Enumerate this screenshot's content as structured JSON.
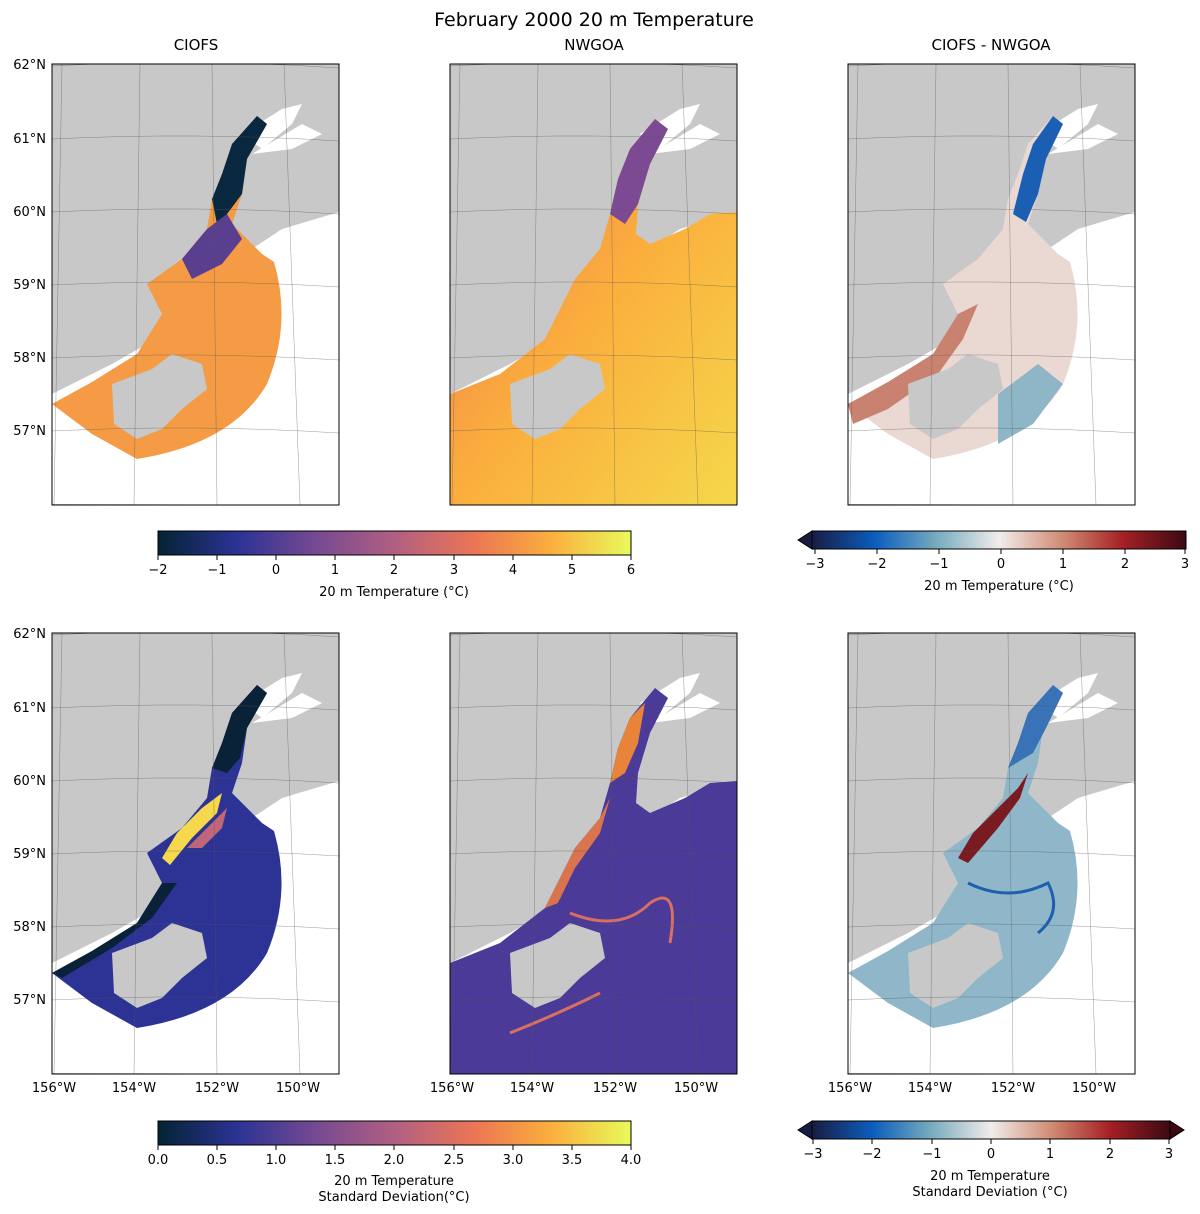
{
  "figure": {
    "title": "February 2000 20 m Temperature"
  },
  "panels": {
    "ciofs_title": "CIOFS",
    "nwgoa_title": "NWGOA",
    "diff_title": "CIOFS - NWGOA"
  },
  "lat_labels": [
    "62°N",
    "61°N",
    "60°N",
    "59°N",
    "58°N",
    "57°N"
  ],
  "lon_labels": [
    "156°W",
    "154°W",
    "152°W",
    "150°W"
  ],
  "colorbars": {
    "mean_temp": {
      "label": "20 m Temperature (°C)",
      "ticks": [
        "−2",
        "−1",
        "0",
        "1",
        "2",
        "3",
        "4",
        "5",
        "6"
      ],
      "colormap": "thermal",
      "extend": "neither"
    },
    "mean_diff": {
      "label": "20 m Temperature (°C)",
      "ticks": [
        "−3",
        "−2",
        "−1",
        "0",
        "1",
        "2",
        "3"
      ],
      "colormap": "balance",
      "extend": "min"
    },
    "std_temp": {
      "label_line1": "20 m Temperature",
      "label_line2": "Standard Deviation(°C)",
      "ticks": [
        "0.0",
        "0.5",
        "1.0",
        "1.5",
        "2.0",
        "2.5",
        "3.0",
        "3.5",
        "4.0"
      ],
      "colormap": "thermal",
      "extend": "neither"
    },
    "std_diff": {
      "label_line1": "20 m Temperature",
      "label_line2": "Standard Deviation (°C)",
      "ticks": [
        "−3",
        "−2",
        "−1",
        "0",
        "1",
        "2",
        "3"
      ],
      "colormap": "balance",
      "extend": "both"
    }
  },
  "colors": {
    "land": "#c8c8c8",
    "thermal": [
      "#042333",
      "#2c3395",
      "#744992",
      "#b15f82",
      "#eb7655",
      "#fbae3d",
      "#e8fa5b"
    ],
    "balance": [
      "#181c43",
      "#0c5ebe",
      "#75aabe",
      "#f1eceb",
      "#d08b73",
      "#a52125",
      "#3c0912"
    ]
  }
}
